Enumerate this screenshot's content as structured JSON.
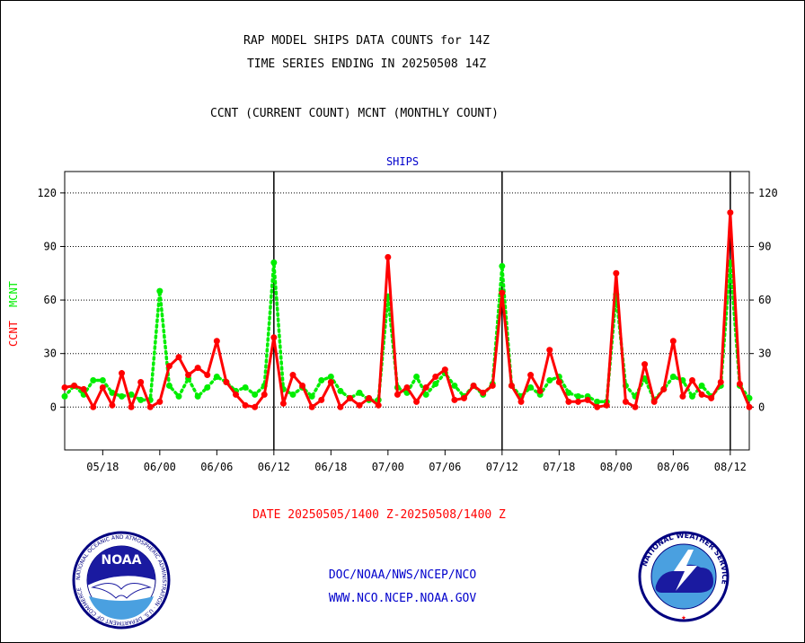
{
  "header": {
    "title_line1": "RAP MODEL SHIPS DATA COUNTS for 14Z",
    "title_line2": "TIME SERIES ENDING IN 20250508 14Z",
    "subtitle": "CCNT (CURRENT COUNT) MCNT (MONTHLY COUNT)"
  },
  "footer": {
    "date_range": "DATE 20250505/1400 Z-20250508/1400 Z",
    "org_line": "DOC/NOAA/NWS/NCEP/NCO",
    "url_line": "WWW.NCO.NCEP.NOAA.GOV",
    "noaa_logo_text": "NOAA",
    "noaa_ring_text": "NATIONAL OCEANIC AND ATMOSPHERIC ADMINISTRATION · U.S. DEPARTMENT OF COMMERCE",
    "nws_ring_text": "NATIONAL WEATHER SERVICE"
  },
  "colors": {
    "ccnt": "#ff0000",
    "mcnt": "#00ee00",
    "panel_label": "#0000cc",
    "footer_text": "#0000cc",
    "date_text": "#ff0000"
  },
  "chart_data": {
    "type": "line",
    "title": "SHIPS",
    "ylabel_ccnt": "CCNT",
    "ylabel_mcnt": "MCNT",
    "ylim": [
      -24,
      132
    ],
    "yticks": [
      0,
      30,
      60,
      90,
      120
    ],
    "xlim": [
      0,
      72
    ],
    "xticks": [
      {
        "x": 4,
        "label": "05/18"
      },
      {
        "x": 10,
        "label": "06/00"
      },
      {
        "x": 16,
        "label": "06/06"
      },
      {
        "x": 22,
        "label": "06/12"
      },
      {
        "x": 28,
        "label": "06/18"
      },
      {
        "x": 34,
        "label": "07/00"
      },
      {
        "x": 40,
        "label": "07/06"
      },
      {
        "x": 46,
        "label": "07/12"
      },
      {
        "x": 52,
        "label": "07/18"
      },
      {
        "x": 58,
        "label": "08/00"
      },
      {
        "x": 64,
        "label": "08/06"
      },
      {
        "x": 70,
        "label": "08/12"
      }
    ],
    "day_boundaries": [
      22,
      46,
      70
    ],
    "grid": true,
    "series": [
      {
        "name": "CCNT",
        "values": [
          11,
          12,
          10,
          0,
          11,
          1,
          19,
          0,
          14,
          0,
          3,
          23,
          28,
          18,
          22,
          18,
          37,
          14,
          7,
          1,
          0,
          7,
          39,
          2,
          18,
          12,
          0,
          4,
          14,
          0,
          5,
          1,
          5,
          1,
          84,
          7,
          11,
          3,
          11,
          17,
          21,
          4,
          5,
          12,
          8,
          12,
          64,
          12,
          3,
          18,
          9,
          32,
          14,
          3,
          3,
          4,
          0,
          1,
          75,
          3,
          0,
          24,
          3,
          10,
          37,
          6,
          15,
          7,
          5,
          14,
          109,
          13,
          0
        ]
      },
      {
        "name": "MCNT",
        "values": [
          6,
          12,
          7,
          15,
          15,
          8,
          6,
          7,
          4,
          4,
          65,
          12,
          6,
          16,
          6,
          11,
          17,
          14,
          9,
          11,
          7,
          12,
          81,
          10,
          7,
          11,
          6,
          15,
          17,
          9,
          5,
          8,
          4,
          4,
          62,
          11,
          8,
          17,
          7,
          13,
          19,
          12,
          6,
          12,
          7,
          13,
          79,
          12,
          6,
          11,
          7,
          15,
          17,
          8,
          6,
          6,
          3,
          3,
          63,
          12,
          6,
          16,
          4,
          10,
          17,
          15,
          6,
          12,
          6,
          12,
          81,
          12,
          5
        ]
      }
    ]
  }
}
